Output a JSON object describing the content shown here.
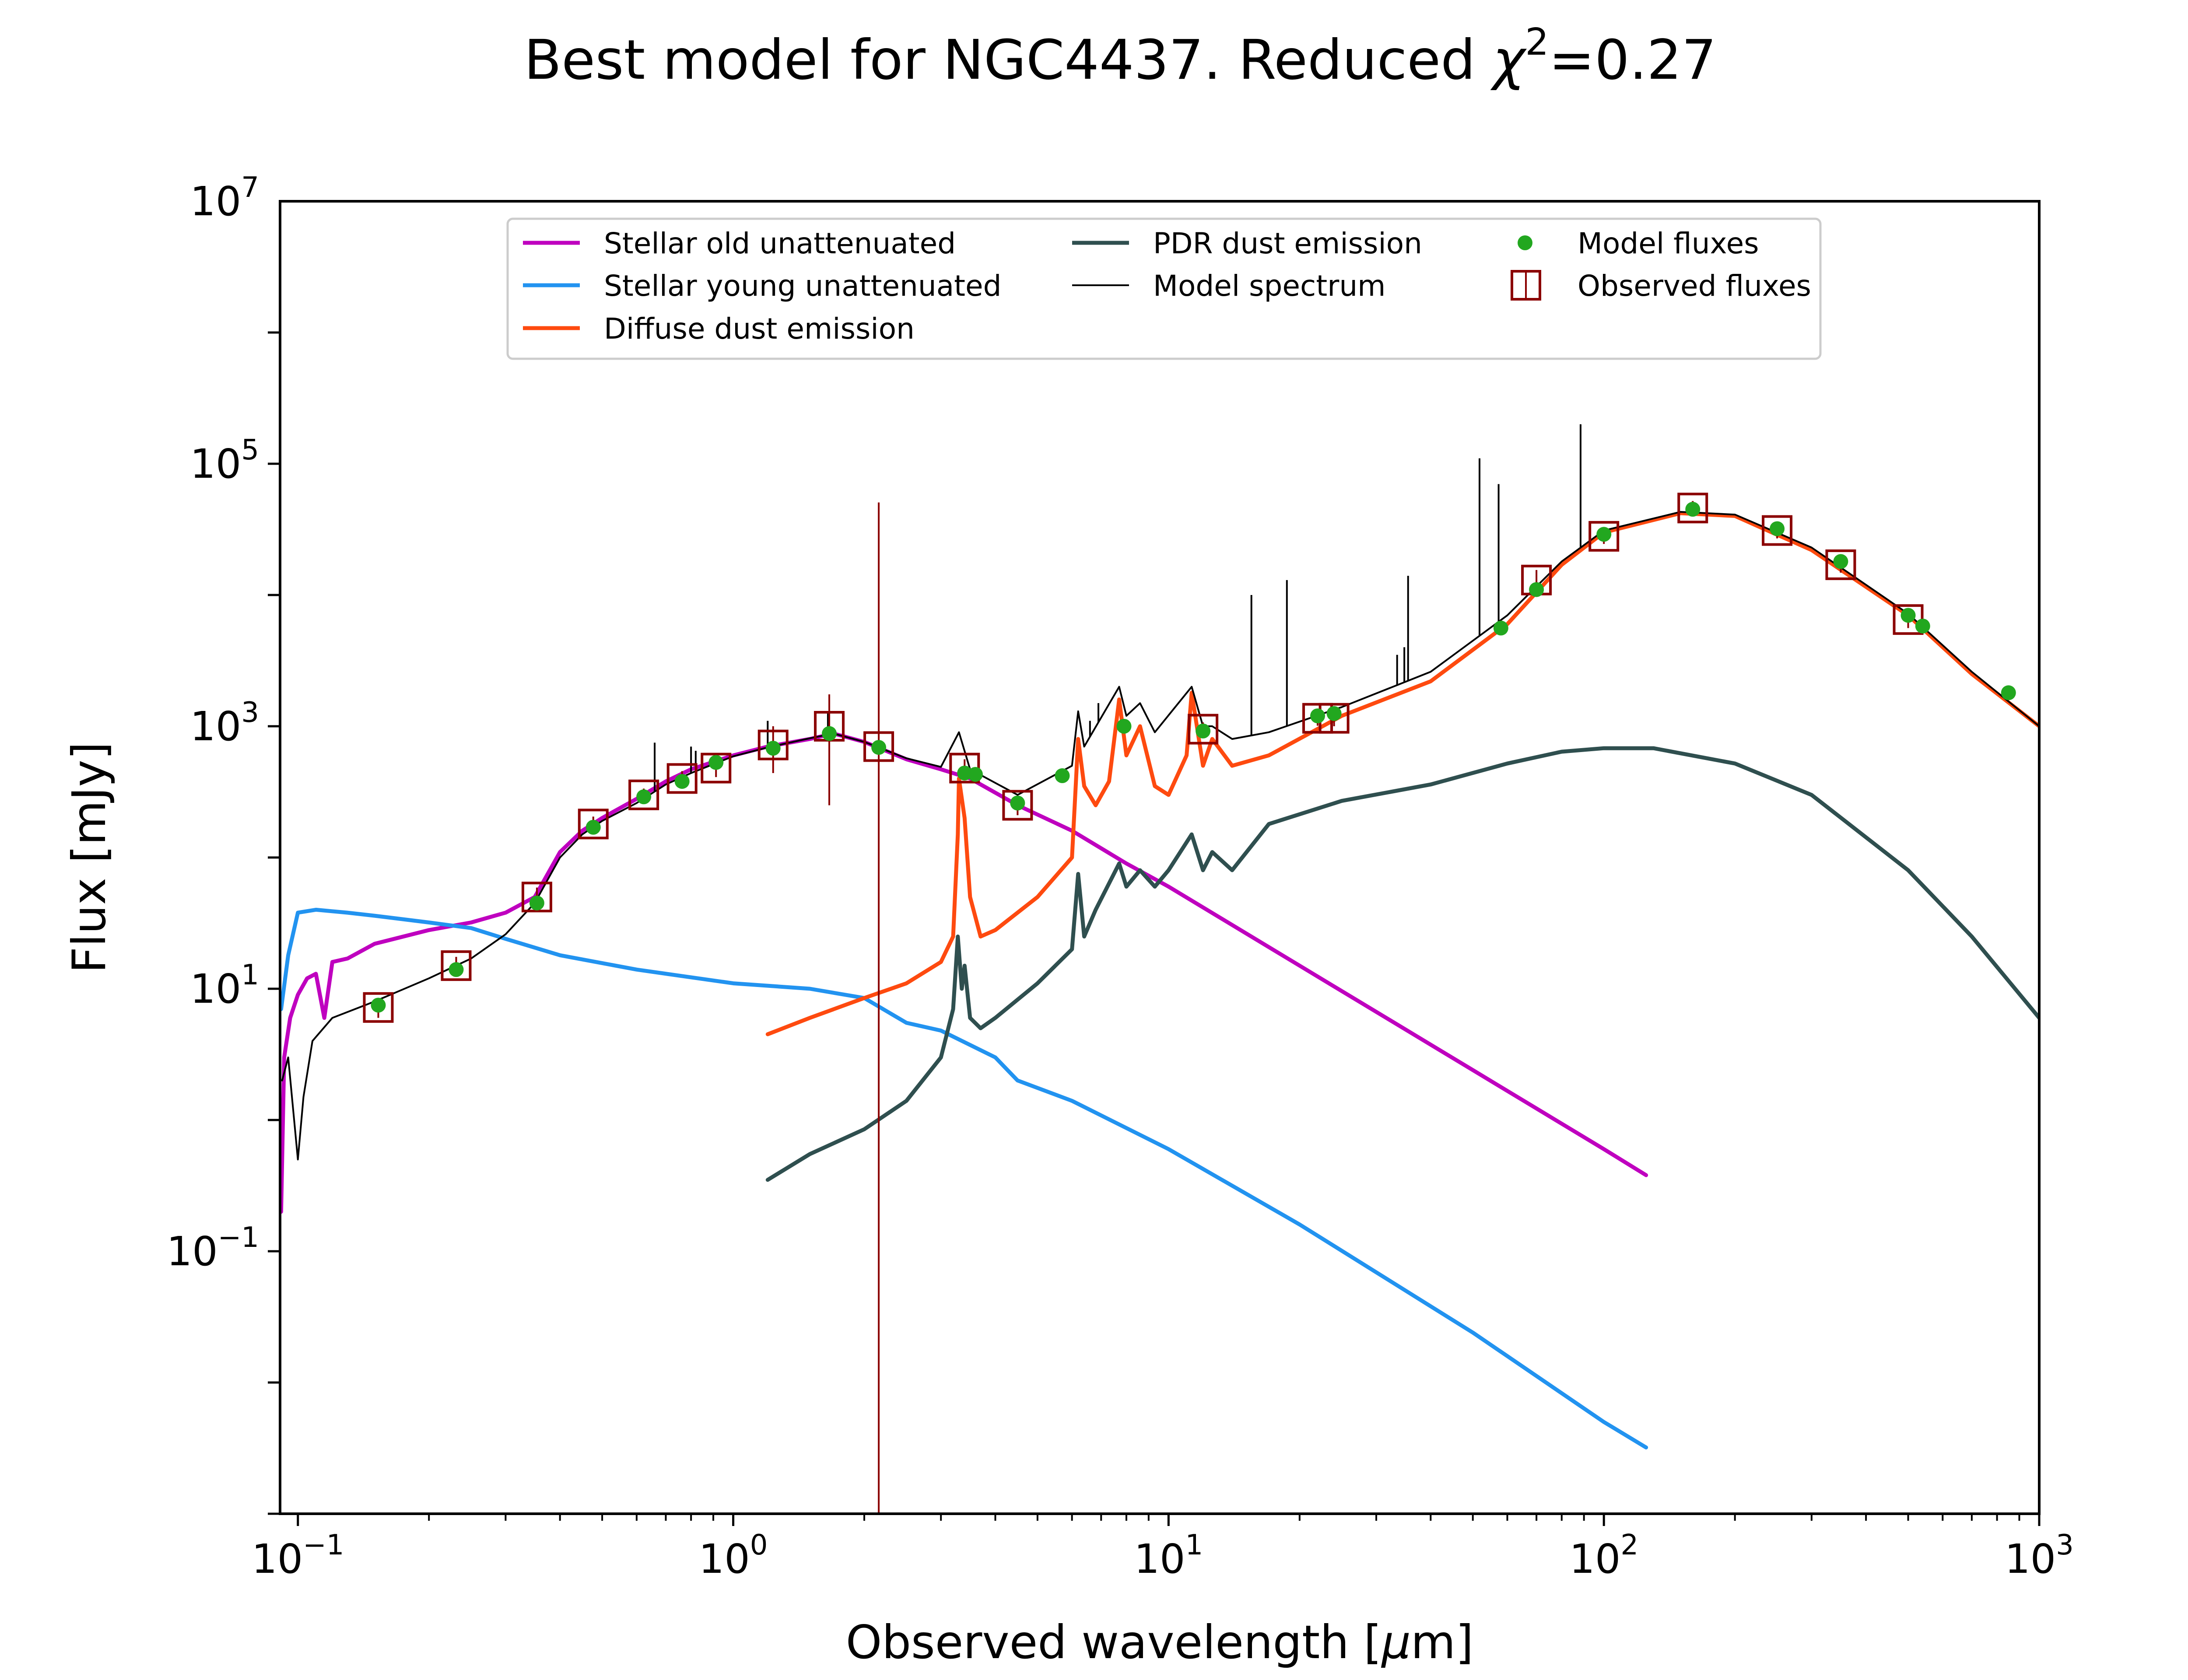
{
  "chart_data": {
    "type": "line",
    "title": {
      "prefix": "Best model for NGC4437. Reduced ",
      "chi_symbol": "χ",
      "chi_exponent": "2",
      "suffix": "=0.27"
    },
    "xlabel": {
      "text": "Observed wavelength [",
      "mu": "μ",
      "unit_tail": "m]"
    },
    "ylabel": "Flux [mJy]",
    "xscale": "log",
    "yscale": "log",
    "xlim": [
      0.091,
      1000
    ],
    "ylim": [
      0.001,
      10000000
    ],
    "x_ticks": [
      {
        "value": 0.1,
        "base": "10",
        "exp": "−1"
      },
      {
        "value": 1,
        "base": "10",
        "exp": "0"
      },
      {
        "value": 10,
        "base": "10",
        "exp": "1"
      },
      {
        "value": 100,
        "base": "10",
        "exp": "2"
      },
      {
        "value": 1000,
        "base": "10",
        "exp": "3"
      }
    ],
    "y_ticks": [
      {
        "value": 0.1,
        "base": "10",
        "exp": "−1"
      },
      {
        "value": 10,
        "base": "10",
        "exp": "1"
      },
      {
        "value": 1000,
        "base": "10",
        "exp": "3"
      },
      {
        "value": 100000,
        "base": "10",
        "exp": "5"
      },
      {
        "value": 10000000,
        "base": "10",
        "exp": "7"
      }
    ],
    "grid": false,
    "legend_position": "top-center",
    "series": [
      {
        "name": "Stellar old unattenuated",
        "color": "#bf00bf",
        "points": [
          [
            0.0915,
            0.2
          ],
          [
            0.093,
            3
          ],
          [
            0.096,
            6
          ],
          [
            0.1,
            9
          ],
          [
            0.105,
            12
          ],
          [
            0.11,
            13
          ],
          [
            0.115,
            6
          ],
          [
            0.12,
            16
          ],
          [
            0.13,
            17
          ],
          [
            0.15,
            22
          ],
          [
            0.2,
            28
          ],
          [
            0.25,
            32
          ],
          [
            0.3,
            38
          ],
          [
            0.35,
            50
          ],
          [
            0.4,
            110
          ],
          [
            0.45,
            160
          ],
          [
            0.5,
            200
          ],
          [
            0.6,
            280
          ],
          [
            0.7,
            380
          ],
          [
            0.8,
            470
          ],
          [
            1.0,
            600
          ],
          [
            1.2,
            700
          ],
          [
            1.5,
            800
          ],
          [
            1.7,
            880
          ],
          [
            2.0,
            760
          ],
          [
            2.5,
            560
          ],
          [
            3.0,
            470
          ],
          [
            3.5,
            400
          ],
          [
            4.5,
            250
          ],
          [
            6,
            160
          ],
          [
            8,
            90
          ],
          [
            10,
            60
          ],
          [
            20,
            15
          ],
          [
            50,
            2.4
          ],
          [
            100,
            0.6
          ],
          [
            125,
            0.38
          ]
        ]
      },
      {
        "name": "Stellar young unattenuated",
        "color": "#2293f0",
        "points": [
          [
            0.0915,
            7
          ],
          [
            0.095,
            18
          ],
          [
            0.1,
            38
          ],
          [
            0.11,
            40
          ],
          [
            0.13,
            38
          ],
          [
            0.15,
            36
          ],
          [
            0.2,
            32
          ],
          [
            0.25,
            29
          ],
          [
            0.3,
            24
          ],
          [
            0.4,
            18
          ],
          [
            0.6,
            14
          ],
          [
            1.0,
            11
          ],
          [
            1.5,
            10
          ],
          [
            2.0,
            8.5
          ],
          [
            2.5,
            5.5
          ],
          [
            3.0,
            4.8
          ],
          [
            4.0,
            3
          ],
          [
            4.5,
            2
          ],
          [
            6,
            1.4
          ],
          [
            10,
            0.6
          ],
          [
            20,
            0.16
          ],
          [
            50,
            0.024
          ],
          [
            100,
            0.005
          ],
          [
            125,
            0.0032
          ]
        ]
      },
      {
        "name": "Diffuse dust emission",
        "color": "#fe4a0f",
        "points": [
          [
            1.2,
            4.5
          ],
          [
            1.5,
            6
          ],
          [
            2.0,
            8.5
          ],
          [
            2.5,
            11
          ],
          [
            3.0,
            16
          ],
          [
            3.2,
            25
          ],
          [
            3.28,
            150
          ],
          [
            3.3,
            400
          ],
          [
            3.4,
            200
          ],
          [
            3.5,
            50
          ],
          [
            3.7,
            25
          ],
          [
            4,
            28
          ],
          [
            5,
            50
          ],
          [
            6,
            100
          ],
          [
            6.2,
            800
          ],
          [
            6.4,
            350
          ],
          [
            6.8,
            250
          ],
          [
            7.3,
            380
          ],
          [
            7.7,
            1600
          ],
          [
            8.0,
            600
          ],
          [
            8.6,
            1000
          ],
          [
            9.3,
            350
          ],
          [
            10,
            300
          ],
          [
            11.0,
            600
          ],
          [
            11.3,
            1800
          ],
          [
            12,
            500
          ],
          [
            12.6,
            800
          ],
          [
            14,
            500
          ],
          [
            17,
            600
          ],
          [
            25,
            1200
          ],
          [
            40,
            2200
          ],
          [
            60,
            6000
          ],
          [
            80,
            17000
          ],
          [
            100,
            30000
          ],
          [
            150,
            42000
          ],
          [
            200,
            40000
          ],
          [
            300,
            22000
          ],
          [
            500,
            7000
          ],
          [
            700,
            2500
          ],
          [
            1000,
            1000
          ]
        ]
      },
      {
        "name": "PDR dust emission",
        "color": "#2f4f4f",
        "points": [
          [
            1.2,
            0.35
          ],
          [
            1.5,
            0.55
          ],
          [
            2.0,
            0.85
          ],
          [
            2.5,
            1.4
          ],
          [
            3.0,
            3
          ],
          [
            3.2,
            7
          ],
          [
            3.28,
            25
          ],
          [
            3.35,
            10
          ],
          [
            3.4,
            15
          ],
          [
            3.5,
            6
          ],
          [
            3.7,
            5
          ],
          [
            4,
            6
          ],
          [
            5,
            11
          ],
          [
            6,
            20
          ],
          [
            6.2,
            75
          ],
          [
            6.4,
            25
          ],
          [
            6.8,
            40
          ],
          [
            7.7,
            90
          ],
          [
            8.0,
            60
          ],
          [
            8.6,
            80
          ],
          [
            9.3,
            60
          ],
          [
            10,
            80
          ],
          [
            11.3,
            150
          ],
          [
            12,
            80
          ],
          [
            12.6,
            110
          ],
          [
            14,
            80
          ],
          [
            17,
            180
          ],
          [
            25,
            270
          ],
          [
            40,
            360
          ],
          [
            60,
            520
          ],
          [
            80,
            640
          ],
          [
            100,
            680
          ],
          [
            130,
            680
          ],
          [
            200,
            520
          ],
          [
            300,
            300
          ],
          [
            500,
            80
          ],
          [
            700,
            25
          ],
          [
            1000,
            6
          ]
        ]
      },
      {
        "name": "Model spectrum",
        "color": "#000000",
        "points": [
          [
            0.092,
            2
          ],
          [
            0.095,
            3
          ],
          [
            0.1,
            0.5
          ],
          [
            0.103,
            1.5
          ],
          [
            0.108,
            4
          ],
          [
            0.12,
            6
          ],
          [
            0.15,
            8
          ],
          [
            0.2,
            12
          ],
          [
            0.25,
            17
          ],
          [
            0.3,
            26
          ],
          [
            0.35,
            45
          ],
          [
            0.4,
            100
          ],
          [
            0.45,
            150
          ],
          [
            0.5,
            190
          ],
          [
            0.6,
            260
          ],
          [
            0.7,
            360
          ],
          [
            0.8,
            440
          ],
          [
            1.0,
            590
          ],
          [
            1.2,
            690
          ],
          [
            1.5,
            810
          ],
          [
            1.7,
            880
          ],
          [
            2.0,
            760
          ],
          [
            2.5,
            570
          ],
          [
            3.0,
            490
          ],
          [
            3.3,
            900
          ],
          [
            3.5,
            470
          ],
          [
            4.5,
            300
          ],
          [
            6,
            500
          ],
          [
            6.2,
            1300
          ],
          [
            6.4,
            700
          ],
          [
            7.7,
            2000
          ],
          [
            8.0,
            1200
          ],
          [
            8.6,
            1500
          ],
          [
            9.3,
            900
          ],
          [
            11.3,
            2000
          ],
          [
            12,
            1000
          ],
          [
            12.6,
            1000
          ],
          [
            14,
            800
          ],
          [
            17,
            900
          ],
          [
            25,
            1400
          ],
          [
            40,
            2600
          ],
          [
            60,
            7000
          ],
          [
            80,
            18000
          ],
          [
            100,
            31000
          ],
          [
            150,
            43000
          ],
          [
            200,
            41000
          ],
          [
            300,
            23000
          ],
          [
            500,
            7200
          ],
          [
            700,
            2600
          ],
          [
            1000,
            1000
          ]
        ]
      }
    ],
    "emission_lines": [
      [
        0.66,
        750
      ],
      [
        0.8,
        700
      ],
      [
        0.82,
        650
      ],
      [
        1.2,
        1100
      ],
      [
        1.65,
        1300
      ],
      [
        6.6,
        1100
      ],
      [
        6.9,
        1500
      ],
      [
        15.5,
        10000
      ],
      [
        18.7,
        13000
      ],
      [
        33.5,
        3500
      ],
      [
        34.8,
        4000
      ],
      [
        35.5,
        14000
      ],
      [
        51.8,
        110000
      ],
      [
        57.3,
        70000
      ],
      [
        88.4,
        200000
      ]
    ],
    "model_fluxes": {
      "name": "Model fluxes",
      "color": "#22a71f",
      "points": [
        [
          0.153,
          7.5
        ],
        [
          0.231,
          14
        ],
        [
          0.354,
          45
        ],
        [
          0.477,
          170
        ],
        [
          0.623,
          290
        ],
        [
          0.763,
          380
        ],
        [
          0.913,
          530
        ],
        [
          1.235,
          680
        ],
        [
          1.662,
          880
        ],
        [
          2.159,
          690
        ],
        [
          3.4,
          440
        ],
        [
          3.6,
          430
        ],
        [
          4.5,
          260
        ],
        [
          5.7,
          420
        ],
        [
          7.9,
          1000
        ],
        [
          12,
          920
        ],
        [
          22,
          1200
        ],
        [
          24,
          1250
        ],
        [
          58,
          5600
        ],
        [
          70,
          11000
        ],
        [
          100,
          29000
        ],
        [
          160,
          45000
        ],
        [
          250,
          32000
        ],
        [
          350,
          18000
        ],
        [
          500,
          7000
        ],
        [
          540,
          5800
        ],
        [
          850,
          1800
        ]
      ]
    },
    "observed_fluxes": {
      "name": "Observed fluxes",
      "color": "#8b0000",
      "points": [
        [
          0.153,
          7.2,
          1.2
        ],
        [
          0.231,
          15,
          2.5
        ],
        [
          0.354,
          50,
          9
        ],
        [
          0.477,
          180,
          25
        ],
        [
          0.623,
          300,
          35
        ],
        [
          0.763,
          400,
          55
        ],
        [
          0.913,
          480,
          70
        ],
        [
          1.235,
          720,
          280
        ],
        [
          1.662,
          1000,
          750
        ],
        [
          2.159,
          700,
          50000
        ],
        [
          3.4,
          480,
          80
        ],
        [
          4.5,
          250,
          40
        ],
        [
          12,
          950,
          120
        ],
        [
          22,
          1150,
          140
        ],
        [
          24,
          1150,
          150
        ],
        [
          70,
          13000,
          2500
        ],
        [
          100,
          28000,
          3500
        ],
        [
          160,
          46000,
          6000
        ],
        [
          250,
          31000,
          4000
        ],
        [
          350,
          17000,
          2200
        ],
        [
          500,
          6500,
          900
        ]
      ]
    }
  }
}
